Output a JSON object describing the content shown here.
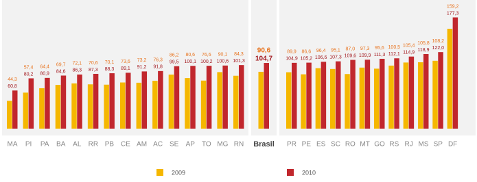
{
  "chart_data": {
    "type": "bar",
    "categories": [
      "MA",
      "PI",
      "PA",
      "BA",
      "AL",
      "RR",
      "PB",
      "CE",
      "AM",
      "AC",
      "SE",
      "AP",
      "TO",
      "MG",
      "RN",
      "Brasil",
      "PR",
      "PE",
      "ES",
      "SC",
      "RO",
      "MT",
      "GO",
      "RS",
      "RJ",
      "MS",
      "SP",
      "DF"
    ],
    "series": [
      {
        "name": "2009",
        "color": "#f5b700",
        "label_color": "#e8731e",
        "values": [
          44.3,
          57.4,
          64.4,
          69.7,
          72.1,
          70.6,
          70.1,
          73.6,
          73.2,
          76.3,
          86.2,
          80.6,
          76.6,
          90.1,
          84.3,
          90.6,
          89.9,
          86.6,
          96.4,
          95.1,
          87.0,
          97.3,
          95.6,
          100.5,
          105.4,
          105.8,
          108.2,
          159.2
        ],
        "value_labels": [
          "44,3",
          "57,4",
          "64,4",
          "69,7",
          "72,1",
          "70,6",
          "70,1",
          "73,6",
          "73,2",
          "76,3",
          "86,2",
          "80,6",
          "76,6",
          "90,1",
          "84,3",
          "90,6",
          "89,9",
          "86,6",
          "96,4",
          "95,1",
          "87,0",
          "97,3",
          "95,6",
          "100,5",
          "105,4",
          "105,8",
          "108,2",
          "159,2"
        ]
      },
      {
        "name": "2010",
        "color": "#c1272d",
        "label_color": "#a3191f",
        "values": [
          60.8,
          80.2,
          80.9,
          84.6,
          86.3,
          87.3,
          88.3,
          89.1,
          91.2,
          91.8,
          99.5,
          100.1,
          100.2,
          100.6,
          101.3,
          104.7,
          104.9,
          105.2,
          106.6,
          107.3,
          109.6,
          109.9,
          111.3,
          112.1,
          114.9,
          118.9,
          122.0,
          177.3
        ],
        "value_labels": [
          "60,8",
          "80,2",
          "80,9",
          "84,6",
          "86,3",
          "87,3",
          "88,3",
          "89,1",
          "91,2",
          "91,8",
          "99,5",
          "100,1",
          "100,2",
          "100,6",
          "101,3",
          "104,7",
          "104,9",
          "105,2",
          "106,6",
          "107,3",
          "109,6",
          "109,9",
          "111,3",
          "112,1",
          "114,9",
          "118,9",
          "122,0",
          "177,3"
        ]
      }
    ],
    "ylim": [
      0,
      180
    ]
  }
}
